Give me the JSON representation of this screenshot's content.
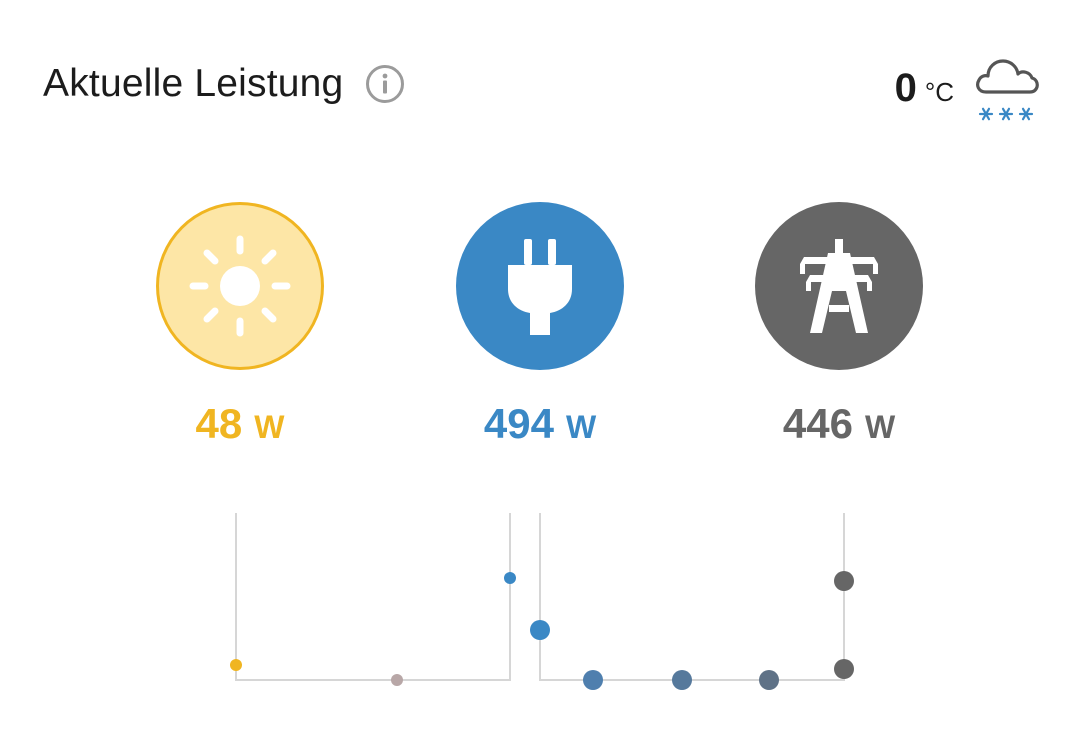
{
  "header": {
    "title": "Aktuelle Leistung"
  },
  "weather": {
    "temperature": "0",
    "unit": "°C",
    "condition_icon": "cloud-snow-icon"
  },
  "tiles": [
    {
      "id": "solar",
      "icon": "sun-icon",
      "value": "48",
      "unit": "W",
      "color": "#f0b521"
    },
    {
      "id": "consumption",
      "icon": "plug-icon",
      "value": "494",
      "unit": "W",
      "color": "#3a88c5"
    },
    {
      "id": "grid",
      "icon": "power-pylon-icon",
      "value": "446",
      "unit": "W",
      "color": "#666666"
    }
  ],
  "colors": {
    "solar": "#f0b521",
    "solar_bg": "#fde6a6",
    "consumption": "#3a88c5",
    "grid": "#666666",
    "flow_mid": "#5580a8",
    "flow_neutral": "#b8a7a7",
    "line": "#d6d6d6"
  }
}
